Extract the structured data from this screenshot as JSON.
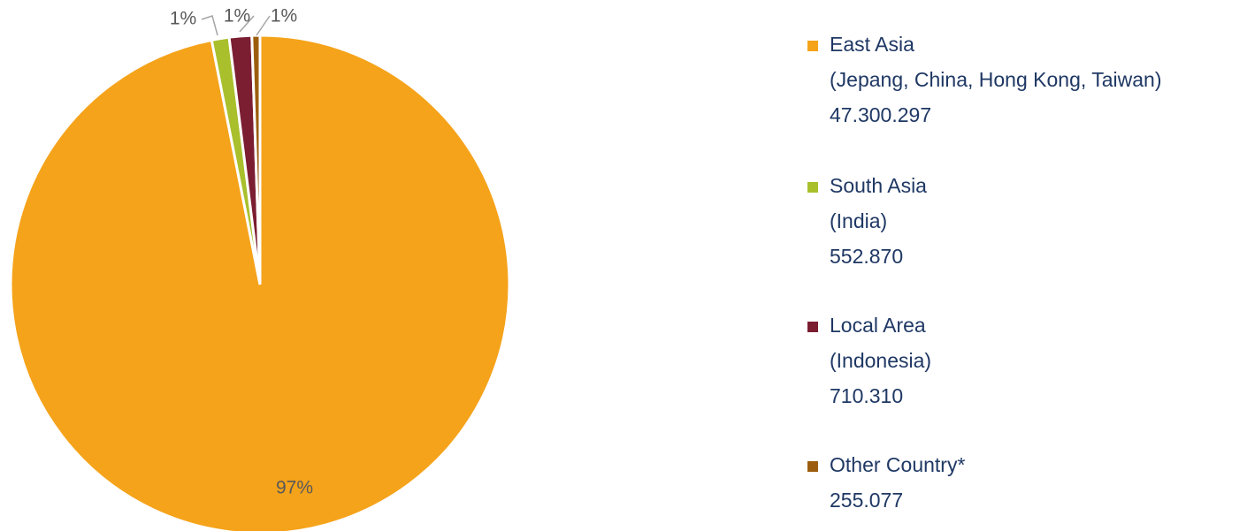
{
  "chart_data": {
    "type": "pie",
    "categories": [
      "East Asia",
      "South Asia",
      "Local Area",
      "Other Country*"
    ],
    "category_details": [
      "(Jepang, China, Hong Kong, Taiwan)",
      "(India)",
      "(Indonesia)",
      null
    ],
    "values": [
      47300297,
      552870,
      710310,
      255077
    ],
    "value_labels": [
      "47.300.297",
      "552.870",
      "710.310",
      "255.077"
    ],
    "percents": [
      97,
      1,
      1,
      1
    ],
    "percent_labels": [
      "97%",
      "1%",
      "1%",
      "1%"
    ],
    "colors": [
      "#f5a31a",
      "#a9c02c",
      "#7b1e31",
      "#9c5e0e"
    ],
    "legend": "right"
  }
}
